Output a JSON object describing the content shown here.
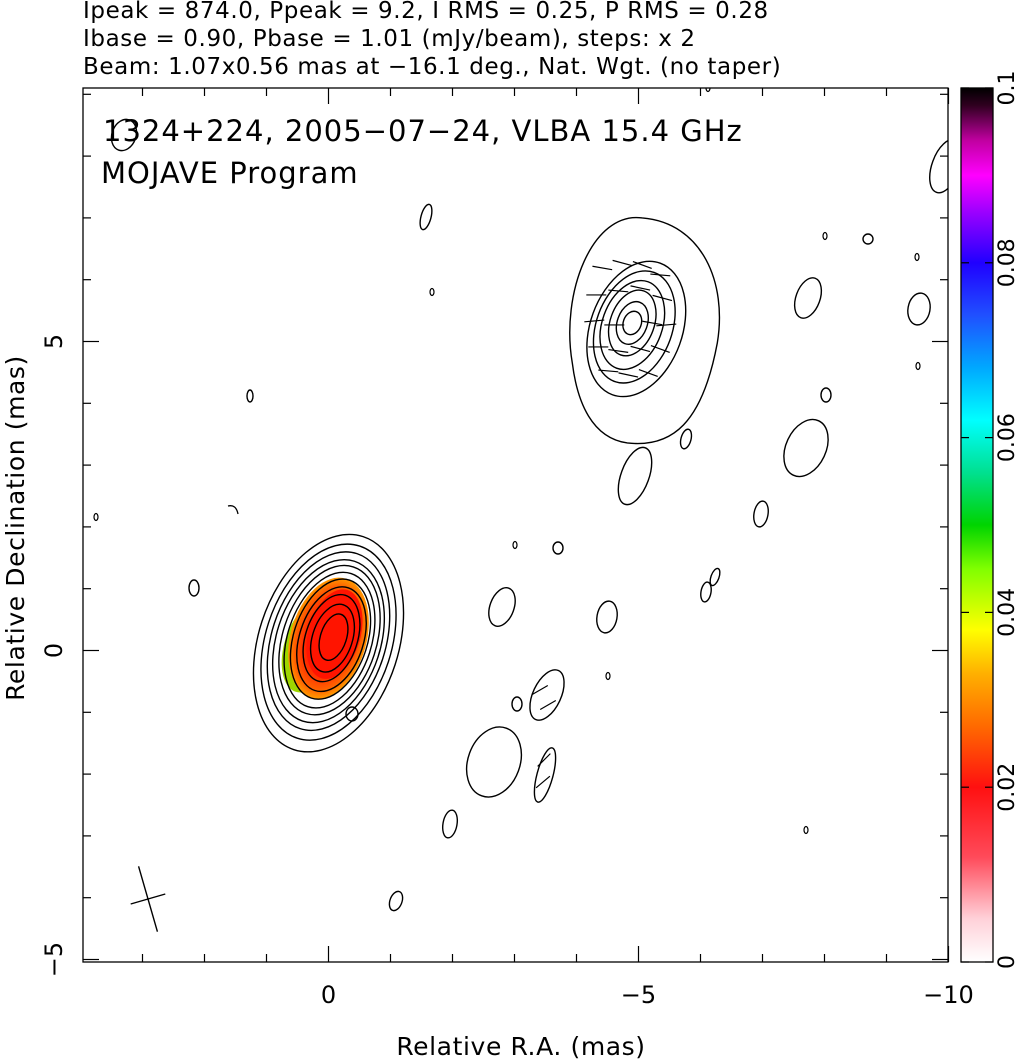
{
  "header": {
    "line1": "Ipeak = 874.0, Ppeak = 9.2, I RMS = 0.25, P RMS = 0.28",
    "line2": "Ibase = 0.90, Pbase = 1.01 (mJy/beam), steps: x 2",
    "line3": "Beam: 1.07x0.56 mas at −16.1 deg., Nat. Wgt. (no taper)"
  },
  "chart_data": {
    "type": "heatmap",
    "title": "1324+224, 2005−07−24, VLBA 15.4 GHz",
    "subtitle": "MOJAVE Program",
    "xlabel": "Relative R.A. (mas)",
    "ylabel": "Relative Declination (mas)",
    "xlim": [
      4,
      -10.5
    ],
    "ylim": [
      -5.2,
      9.1
    ],
    "x_ticks": [
      0,
      -5,
      -10
    ],
    "x_tick_labels": [
      "0",
      "−5",
      "−10"
    ],
    "y_ticks": [
      -5,
      0,
      5
    ],
    "y_tick_labels": [
      "−5",
      "0",
      "5"
    ],
    "colorbar": {
      "label_values": [
        0,
        0.02,
        0.04,
        0.06,
        0.08,
        0.1
      ],
      "label_texts": [
        "0",
        "0.02",
        "0.04",
        "0.06",
        "0.08",
        "0.1"
      ],
      "range": [
        0,
        0.1
      ]
    },
    "core": {
      "x": 0,
      "y": 0.2,
      "peak_mJy": 874.0
    },
    "jet_component": {
      "x": -4.9,
      "y": 5.3
    },
    "contour_base_mJy": 0.9,
    "contour_step": 2,
    "beam": {
      "major_mas": 1.07,
      "minor_mas": 0.56,
      "pa_deg": -16.1
    }
  }
}
